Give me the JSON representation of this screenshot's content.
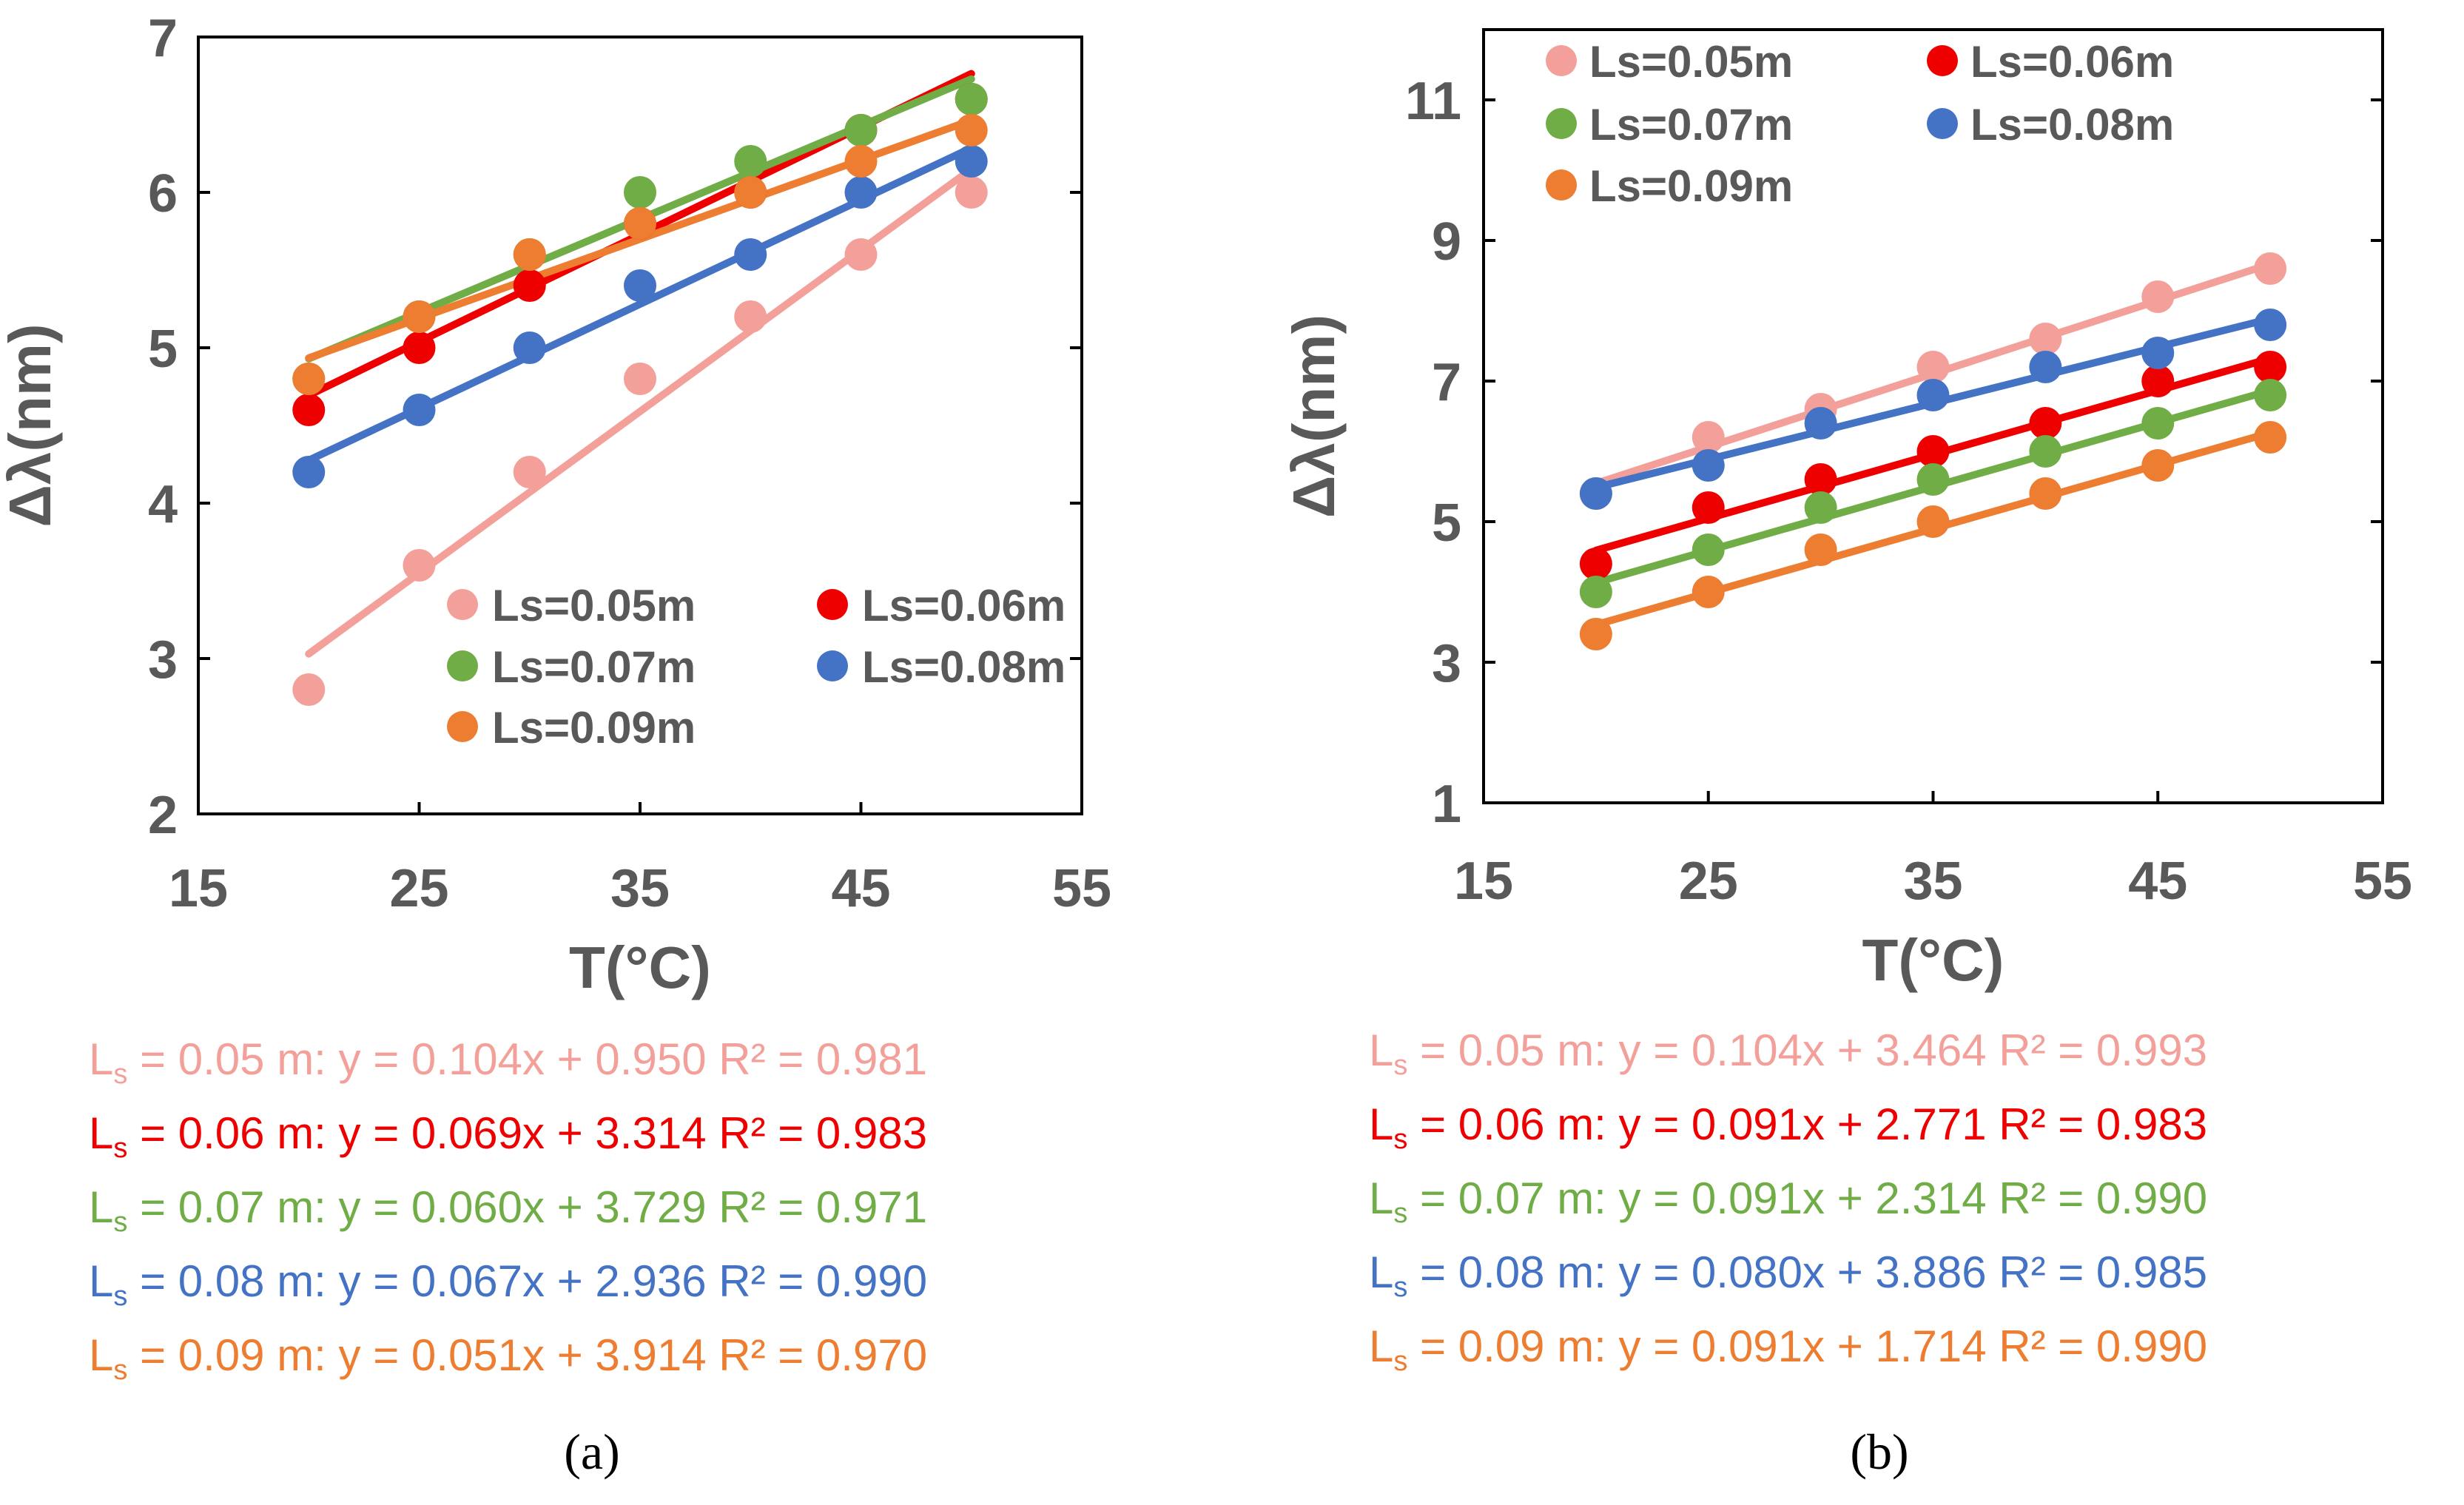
{
  "chart_data": [
    {
      "type": "scatter",
      "panel_label": "(a)",
      "xlabel": "T(°C)",
      "ylabel": "Δλ(nm)",
      "xlim": [
        15,
        55
      ],
      "ylim": [
        2,
        7
      ],
      "xticks": [
        15,
        25,
        35,
        45,
        55
      ],
      "yticks": [
        2,
        3,
        4,
        5,
        6,
        7
      ],
      "legend_position": "lower-right",
      "series": [
        {
          "name": "Ls=0.05m",
          "color": "#F4A09A",
          "x": [
            20,
            25,
            30,
            35,
            40,
            45,
            50
          ],
          "y": [
            2.8,
            3.6,
            4.2,
            4.8,
            5.2,
            5.6,
            6.0
          ],
          "fit_slope": 0.104,
          "fit_intercept": 0.95
        },
        {
          "name": "Ls=0.06m",
          "color": "#EE0000",
          "x": [
            20,
            25,
            30,
            35,
            40,
            45,
            50
          ],
          "y": [
            4.6,
            5.0,
            5.4,
            5.8,
            6.0,
            6.4,
            6.6
          ],
          "fit_slope": 0.069,
          "fit_intercept": 3.314
        },
        {
          "name": "Ls=0.07m",
          "color": "#70AD47",
          "x": [
            20,
            25,
            30,
            35,
            40,
            45,
            50
          ],
          "y": [
            4.8,
            5.2,
            5.6,
            6.0,
            6.2,
            6.4,
            6.6
          ],
          "fit_slope": 0.06,
          "fit_intercept": 3.729
        },
        {
          "name": "Ls=0.08m",
          "color": "#4472C4",
          "x": [
            20,
            25,
            30,
            35,
            40,
            45,
            50
          ],
          "y": [
            4.2,
            4.6,
            5.0,
            5.4,
            5.6,
            6.0,
            6.2
          ],
          "fit_slope": 0.067,
          "fit_intercept": 2.936
        },
        {
          "name": "Ls=0.09m",
          "color": "#ED7D31",
          "x": [
            20,
            25,
            30,
            35,
            40,
            45,
            50
          ],
          "y": [
            4.8,
            5.2,
            5.6,
            5.8,
            6.0,
            6.2,
            6.4
          ],
          "fit_slope": 0.051,
          "fit_intercept": 3.914
        }
      ],
      "equations": [
        {
          "sub": "s",
          "text": " = 0.05 m: y = 0.104x + 0.950 R² = 0.981",
          "color": "#F4A09A"
        },
        {
          "sub": "s",
          "text": " = 0.06 m: y = 0.069x + 3.314 R² = 0.983",
          "color": "#EE0000"
        },
        {
          "sub": "s",
          "text": " = 0.07 m: y = 0.060x + 3.729 R² = 0.971",
          "color": "#70AD47"
        },
        {
          "sub": "s",
          "text": " = 0.08 m: y = 0.067x + 2.936 R² = 0.990",
          "color": "#4472C4"
        },
        {
          "sub": "s",
          "text": " = 0.09 m: y = 0.051x + 3.914 R² = 0.970",
          "color": "#ED7D31"
        }
      ]
    },
    {
      "type": "scatter",
      "panel_label": "(b)",
      "xlabel": "T(°C)",
      "ylabel": "Δλ(nm)",
      "xlim": [
        15,
        55
      ],
      "ylim": [
        1,
        12
      ],
      "xticks": [
        15,
        25,
        35,
        45,
        55
      ],
      "yticks": [
        1,
        3,
        5,
        7,
        9,
        11
      ],
      "legend_position": "top",
      "series": [
        {
          "name": "Ls=0.05m",
          "color": "#F4A09A",
          "x": [
            20,
            25,
            30,
            35,
            40,
            45,
            50
          ],
          "y": [
            5.4,
            6.2,
            6.6,
            7.2,
            7.6,
            8.2,
            8.6
          ],
          "fit_slope": 0.104,
          "fit_intercept": 3.464
        },
        {
          "name": "Ls=0.06m",
          "color": "#EE0000",
          "x": [
            20,
            25,
            30,
            35,
            40,
            45,
            50
          ],
          "y": [
            4.4,
            5.2,
            5.6,
            6.0,
            6.4,
            7.0,
            7.2
          ],
          "fit_slope": 0.091,
          "fit_intercept": 2.771
        },
        {
          "name": "Ls=0.07m",
          "color": "#70AD47",
          "x": [
            20,
            25,
            30,
            35,
            40,
            45,
            50
          ],
          "y": [
            4.0,
            4.6,
            5.2,
            5.6,
            6.0,
            6.4,
            6.8
          ],
          "fit_slope": 0.091,
          "fit_intercept": 2.314
        },
        {
          "name": "Ls=0.08m",
          "color": "#4472C4",
          "x": [
            20,
            25,
            30,
            35,
            40,
            45,
            50
          ],
          "y": [
            5.4,
            5.8,
            6.4,
            6.8,
            7.2,
            7.4,
            7.8
          ],
          "fit_slope": 0.08,
          "fit_intercept": 3.886
        },
        {
          "name": "Ls=0.09m",
          "color": "#ED7D31",
          "x": [
            20,
            25,
            30,
            35,
            40,
            45,
            50
          ],
          "y": [
            3.4,
            4.0,
            4.6,
            5.0,
            5.4,
            5.8,
            6.2
          ],
          "fit_slope": 0.091,
          "fit_intercept": 1.714
        }
      ],
      "equations": [
        {
          "sub": "s",
          "text": " = 0.05 m: y = 0.104x + 3.464 R² = 0.993",
          "color": "#F4A09A"
        },
        {
          "sub": "s",
          "text": " = 0.06 m: y = 0.091x + 2.771 R² = 0.983",
          "color": "#EE0000"
        },
        {
          "sub": "s",
          "text": " = 0.07 m: y = 0.091x + 2.314 R² = 0.990",
          "color": "#70AD47"
        },
        {
          "sub": "s",
          "text": " = 0.08 m: y = 0.080x + 3.886 R² = 0.985",
          "color": "#4472C4"
        },
        {
          "sub": "s",
          "text": " = 0.09 m: y = 0.091x + 1.714 R² = 0.990",
          "color": "#ED7D31"
        }
      ]
    }
  ]
}
